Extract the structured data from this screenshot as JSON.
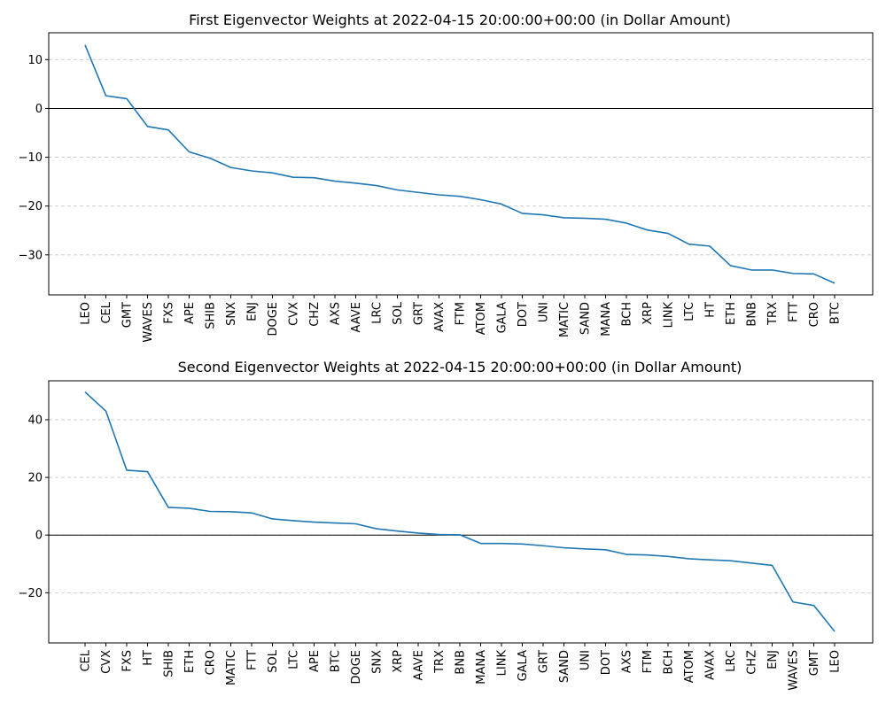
{
  "chart_data": [
    {
      "type": "line",
      "title": "First Eigenvector Weights at 2022-04-15 20:00:00+00:00 (in Dollar Amount)",
      "xlabel": "",
      "ylabel": "",
      "ylim": [
        -38.2,
        15.5
      ],
      "yticks": [
        10,
        0,
        -10,
        -20,
        -30
      ],
      "grid": "y-dashed",
      "zero_line": true,
      "line_color": "#1f77b4",
      "categories": [
        "LEO",
        "CEL",
        "GMT",
        "WAVES",
        "FXS",
        "APE",
        "SHIB",
        "SNX",
        "ENJ",
        "DOGE",
        "CVX",
        "CHZ",
        "AXS",
        "AAVE",
        "LRC",
        "SOL",
        "GRT",
        "AVAX",
        "FTM",
        "ATOM",
        "GALA",
        "DOT",
        "UNI",
        "MATIC",
        "SAND",
        "MANA",
        "BCH",
        "XRP",
        "LINK",
        "LTC",
        "HT",
        "ETH",
        "BNB",
        "TRX",
        "FTT",
        "CRO",
        "BTC"
      ],
      "values": [
        13.0,
        2.6,
        2.0,
        -3.7,
        -4.4,
        -8.9,
        -10.2,
        -12.1,
        -12.8,
        -13.2,
        -14.1,
        -14.2,
        -14.9,
        -15.3,
        -15.8,
        -16.7,
        -17.2,
        -17.7,
        -18.0,
        -18.7,
        -19.6,
        -21.5,
        -21.8,
        -22.4,
        -22.5,
        -22.7,
        -23.5,
        -24.9,
        -25.6,
        -27.8,
        -28.2,
        -32.2,
        -33.1,
        -33.1,
        -33.8,
        -33.9,
        -35.8
      ]
    },
    {
      "type": "line",
      "title": "Second Eigenvector Weights at 2022-04-15 20:00:00+00:00 (in Dollar Amount)",
      "xlabel": "",
      "ylabel": "",
      "ylim": [
        -37.4,
        53.5
      ],
      "yticks": [
        40,
        20,
        0,
        -20
      ],
      "grid": "y-dashed",
      "zero_line": true,
      "line_color": "#1f77b4",
      "categories": [
        "CEL",
        "CVX",
        "FXS",
        "HT",
        "SHIB",
        "ETH",
        "CRO",
        "MATIC",
        "FTT",
        "SOL",
        "LTC",
        "APE",
        "BTC",
        "DOGE",
        "SNX",
        "XRP",
        "AAVE",
        "TRX",
        "BNB",
        "MANA",
        "LINK",
        "GALA",
        "GRT",
        "SAND",
        "UNI",
        "DOT",
        "AXS",
        "FTM",
        "BCH",
        "ATOM",
        "AVAX",
        "LRC",
        "CHZ",
        "ENJ",
        "WAVES",
        "GMT",
        "LEO"
      ],
      "values": [
        49.6,
        43.0,
        22.5,
        22.0,
        9.6,
        9.3,
        8.2,
        8.1,
        7.7,
        5.6,
        5.0,
        4.5,
        4.2,
        3.9,
        2.2,
        1.4,
        0.7,
        0.2,
        0.1,
        -2.9,
        -2.9,
        -3.1,
        -3.7,
        -4.4,
        -4.8,
        -5.1,
        -6.7,
        -6.9,
        -7.4,
        -8.2,
        -8.6,
        -8.9,
        -9.7,
        -10.5,
        -23.2,
        -24.4,
        -33.4
      ]
    }
  ]
}
